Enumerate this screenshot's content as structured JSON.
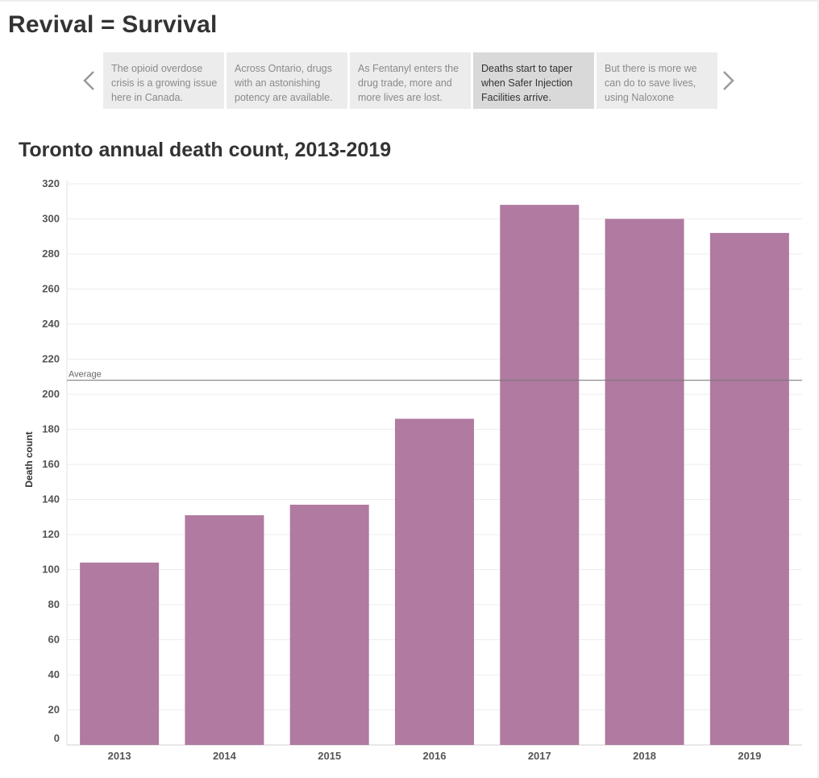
{
  "story": {
    "title": "Revival = Survival",
    "points": [
      {
        "text": "The opioid overdose crisis is a growing issue here in Canada.",
        "active": false
      },
      {
        "text": "Across Ontario, drugs with an astonishing potency are available.",
        "active": false
      },
      {
        "text": "As Fentanyl enters the drug trade, more and more lives are lost.",
        "active": false
      },
      {
        "text": "Deaths start to taper when Safer Injection Facilities arrive.",
        "active": true
      },
      {
        "text": "But there is more we can do to save lives, using Naloxone",
        "active": false
      }
    ],
    "prev_icon": "chevron-left-icon",
    "next_icon": "chevron-right-icon"
  },
  "chart_data": {
    "type": "bar",
    "title": "Toronto annual death count, 2013-2019",
    "xlabel": "",
    "ylabel": "Death count",
    "categories": [
      "2013",
      "2014",
      "2015",
      "2016",
      "2017",
      "2018",
      "2019"
    ],
    "values": [
      104,
      131,
      137,
      186,
      308,
      300,
      292
    ],
    "ylim": [
      0,
      320
    ],
    "yticks": [
      0,
      20,
      40,
      60,
      80,
      100,
      120,
      140,
      160,
      180,
      200,
      220,
      240,
      260,
      280,
      300,
      320
    ],
    "reference_line": {
      "label": "Average",
      "value": 208
    },
    "bar_color": "#b07aa1",
    "grid": true
  }
}
